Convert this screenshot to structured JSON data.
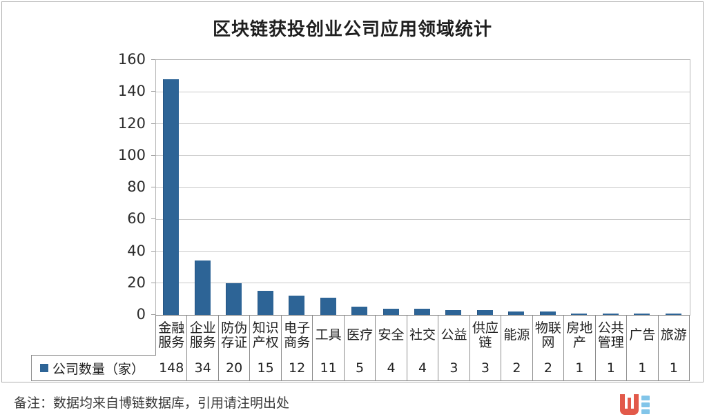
{
  "title": "区块链获投创业公司应用领域统计",
  "chart_data": {
    "type": "bar",
    "title": "区块链获投创业公司应用领域统计",
    "series_name": "公司数量（家）",
    "categories": [
      "金融服务",
      "企业服务",
      "防伪存证",
      "知识产权",
      "电子商务",
      "工具",
      "医疗",
      "安全",
      "社交",
      "公益",
      "供应链",
      "能源",
      "物联网",
      "房地产",
      "公共管理",
      "广告",
      "旅游"
    ],
    "values": [
      148,
      34,
      20,
      15,
      12,
      11,
      5,
      4,
      4,
      3,
      3,
      2,
      2,
      1,
      1,
      1,
      1
    ],
    "ylim": [
      0,
      160
    ],
    "yticks": [
      0,
      20,
      40,
      60,
      80,
      100,
      120,
      140,
      160
    ],
    "grid": true,
    "legend_position": "bottom-left-table",
    "bar_color": "#2d6496"
  },
  "legend": {
    "label": "公司数量（家）",
    "swatch_color": "#2d6496"
  },
  "footer": {
    "note": "备注：数据均来自博链数据库，引用请注明出处"
  },
  "logo": {
    "name": "bolian-logo",
    "w_color": "#e2594a",
    "bars_color": "#82c5e9"
  }
}
